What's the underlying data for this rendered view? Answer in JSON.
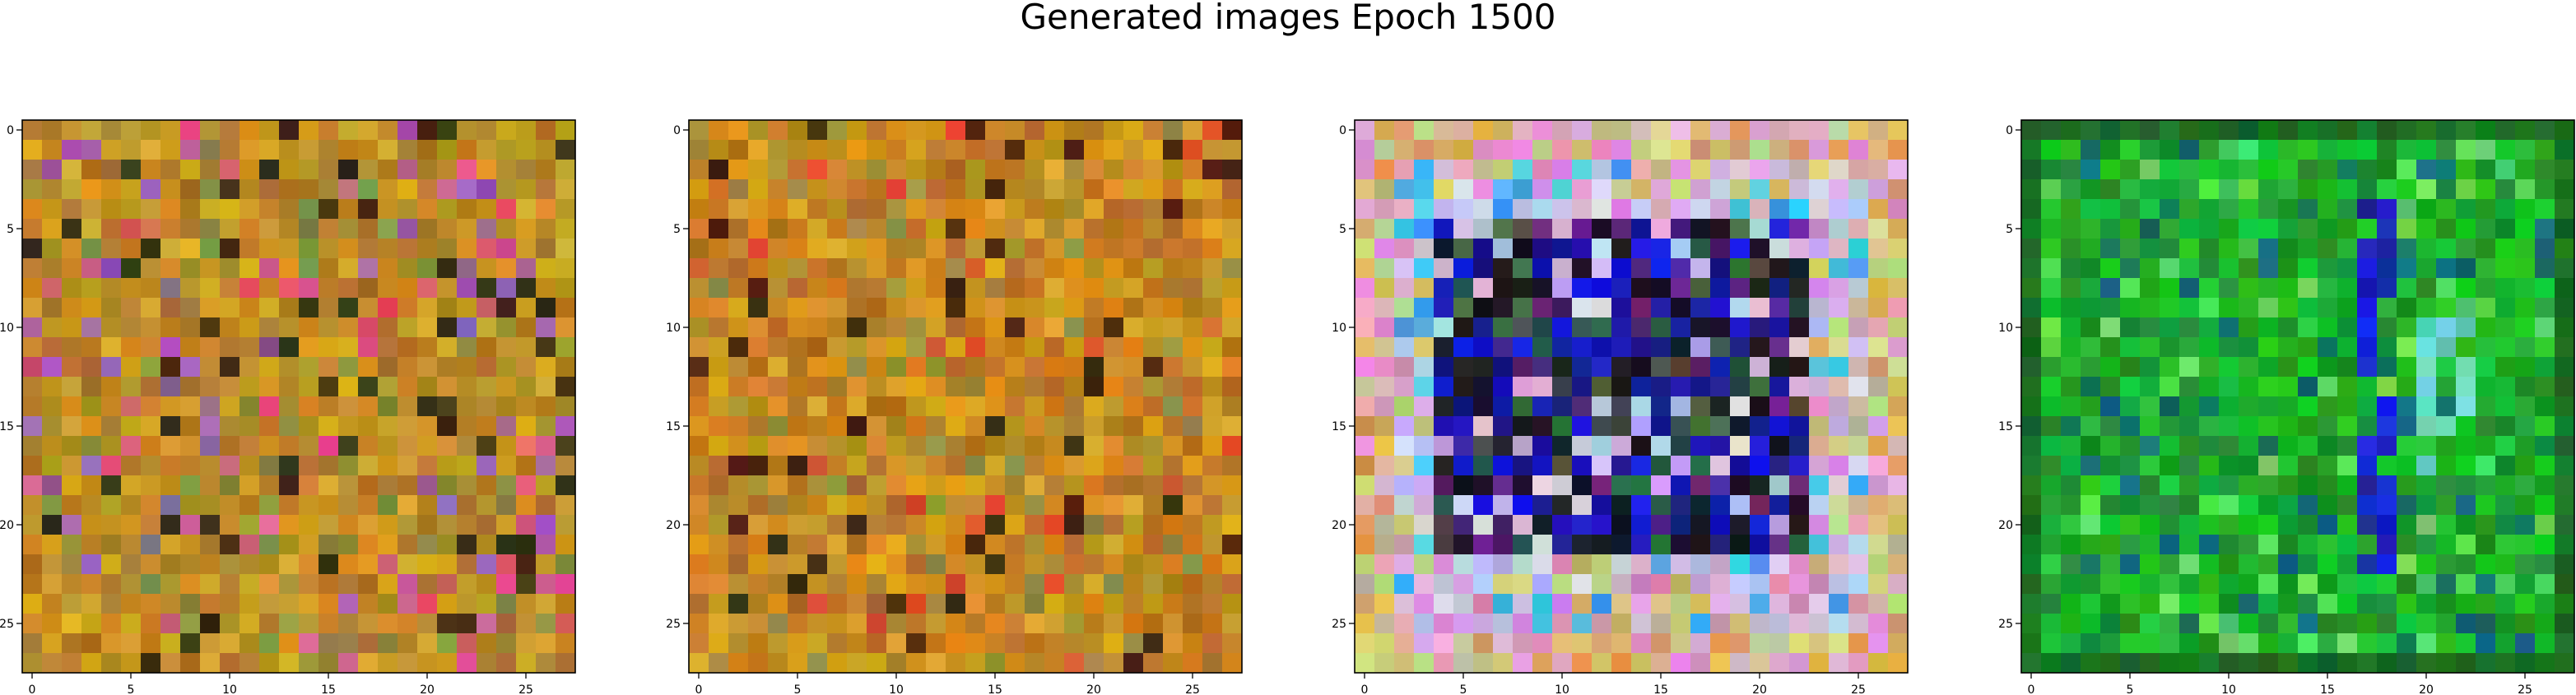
{
  "figure": {
    "title": "Generated images Epoch 1500"
  },
  "chart_data": [
    {
      "type": "heatmap",
      "x_ticks": [
        0,
        5,
        10,
        15,
        20,
        25
      ],
      "y_ticks": [
        0,
        5,
        10,
        15,
        20,
        25
      ],
      "xlim": [
        -0.5,
        27.5
      ],
      "ylim": [
        27.5,
        -0.5
      ],
      "grid": false,
      "rows": 28,
      "cols": 28,
      "palette_hint": "orange-brown noise",
      "pixels": "pseudo-random RGB 28x28"
    },
    {
      "type": "heatmap",
      "x_ticks": [
        0,
        5,
        10,
        15,
        20,
        25
      ],
      "y_ticks": [
        0,
        5,
        10,
        15,
        20,
        25
      ],
      "xlim": [
        -0.5,
        27.5
      ],
      "ylim": [
        27.5,
        -0.5
      ],
      "grid": false,
      "rows": 28,
      "cols": 28,
      "palette_hint": "orange-brown noise",
      "pixels": "pseudo-random RGB 28x28"
    },
    {
      "type": "heatmap",
      "x_ticks": [
        0,
        5,
        10,
        15,
        20,
        25
      ],
      "y_ticks": [
        0,
        5,
        10,
        15,
        20,
        25
      ],
      "xlim": [
        -0.5,
        27.5
      ],
      "ylim": [
        27.5,
        -0.5
      ],
      "grid": false,
      "rows": 28,
      "cols": 28,
      "palette_hint": "pastel border, dark blue interior",
      "pixels": "pseudo-random RGB 28x28"
    },
    {
      "type": "heatmap",
      "x_ticks": [
        0,
        5,
        10,
        15,
        20,
        25
      ],
      "y_ticks": [
        0,
        5,
        10,
        15,
        20,
        25
      ],
      "xlim": [
        -0.5,
        27.5
      ],
      "ylim": [
        27.5,
        -0.5
      ],
      "grid": false,
      "rows": 28,
      "cols": 28,
      "palette_hint": "green with blue vertical stroke",
      "pixels": "pseudo-random RGB 28x28"
    }
  ]
}
